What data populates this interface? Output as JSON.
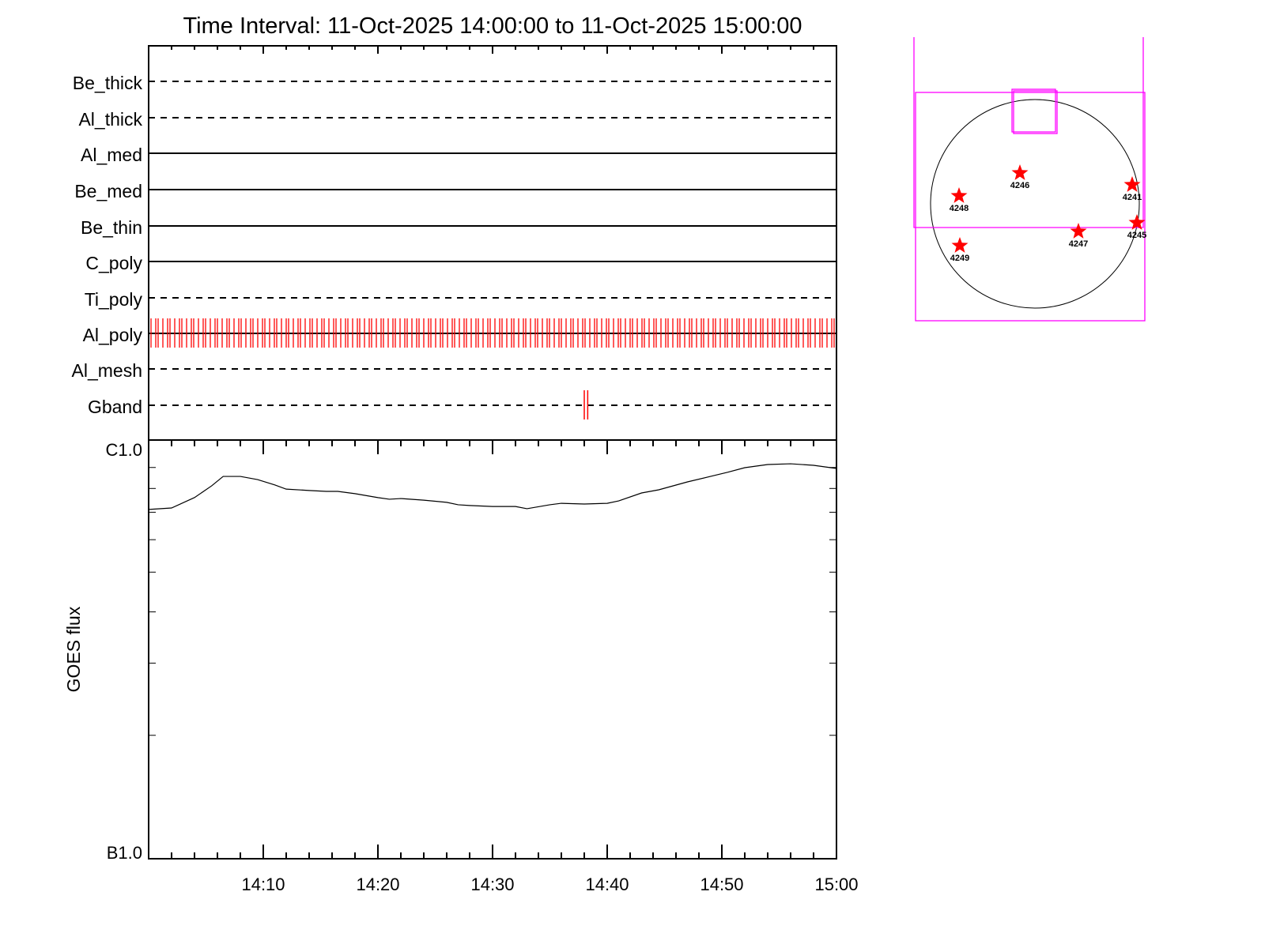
{
  "chart_data": [
    {
      "type": "table",
      "title": "Time Interval: 11-Oct-2025 14:00:00 to 11-Oct-2025 15:00:00",
      "rows": [
        {
          "label": "Be_thick",
          "style": "dashed"
        },
        {
          "label": "Al_thick",
          "style": "dashed"
        },
        {
          "label": "Al_med",
          "style": "solid"
        },
        {
          "label": "Be_med",
          "style": "solid"
        },
        {
          "label": "Be_thin",
          "style": "solid"
        },
        {
          "label": "C_poly",
          "style": "solid"
        },
        {
          "label": "Ti_poly",
          "style": "dashed"
        },
        {
          "label": "Al_poly",
          "style": "solid",
          "marks": "frequent"
        },
        {
          "label": "Al_mesh",
          "style": "dashed"
        },
        {
          "label": "Gband",
          "style": "dashed",
          "marks_minutes": [
            38.0,
            38.3
          ]
        }
      ],
      "mark_color": "#ff0000"
    },
    {
      "type": "line",
      "ylabel": "GOES flux",
      "yscale": "log",
      "ylim": [
        1e-06,
        1e-05
      ],
      "ytick_labels": [
        "B1.0",
        "C1.0"
      ],
      "xlim_minutes": [
        0,
        60
      ],
      "xtick_labels": [
        "14:10",
        "14:20",
        "14:30",
        "14:40",
        "14:50",
        "15:00"
      ],
      "x_minutes": [
        0,
        2,
        4,
        5.5,
        6.5,
        8,
        9.5,
        11,
        12,
        14,
        15.5,
        16.5,
        18,
        20,
        21,
        22,
        24,
        26,
        27,
        28,
        30,
        32,
        33,
        35,
        36,
        38,
        40,
        41,
        43,
        44.5,
        47,
        49,
        50.5,
        52,
        54,
        56,
        58,
        60
      ],
      "y_flux": [
        7.11e-06,
        7.17e-06,
        7.6e-06,
        8.12e-06,
        8.56e-06,
        8.56e-06,
        8.41e-06,
        8.16e-06,
        7.97e-06,
        7.91e-06,
        7.87e-06,
        7.87e-06,
        7.77e-06,
        7.6e-06,
        7.53e-06,
        7.56e-06,
        7.49e-06,
        7.4e-06,
        7.3e-06,
        7.27e-06,
        7.23e-06,
        7.23e-06,
        7.14e-06,
        7.3e-06,
        7.36e-06,
        7.33e-06,
        7.36e-06,
        7.46e-06,
        7.8e-06,
        7.94e-06,
        8.3e-06,
        8.56e-06,
        8.76e-06,
        8.99e-06,
        9.15e-06,
        9.19e-06,
        9.11e-06,
        8.95e-06
      ]
    }
  ],
  "solar_map": {
    "regions": [
      {
        "label": "4246"
      },
      {
        "label": "4248"
      },
      {
        "label": "4241"
      },
      {
        "label": "4245"
      },
      {
        "label": "4247"
      },
      {
        "label": "4249"
      }
    ],
    "fov_color": "#ff00ff",
    "star_color": "#ff0000"
  }
}
